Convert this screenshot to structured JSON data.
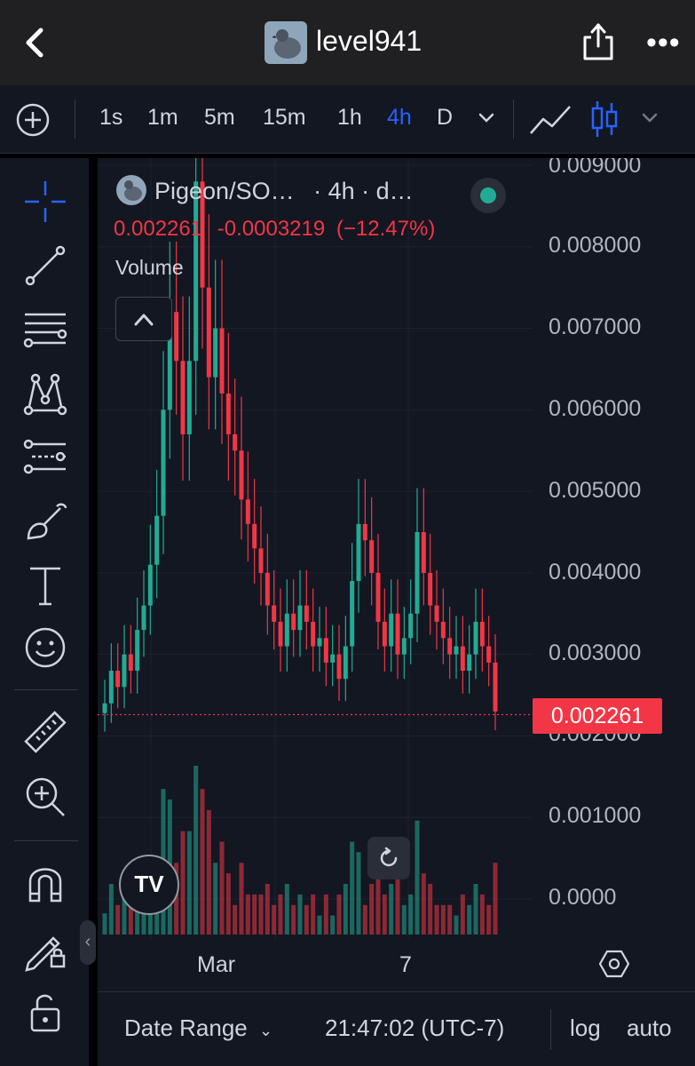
{
  "header": {
    "username": "level941"
  },
  "toolbar": {
    "intervals": [
      "1s",
      "1m",
      "5m",
      "15m",
      "1h",
      "4h",
      "D"
    ],
    "active_interval": "4h"
  },
  "legend": {
    "symbol": "Pigeon/SO…",
    "interval_info": "· 4h · d…",
    "price": "0.002261",
    "change": "-0.0003219",
    "change_pct": "(−12.47%)",
    "volume_label": "Volume"
  },
  "price_axis": {
    "labels": [
      "0.009000",
      "0.008000",
      "0.007000",
      "0.006000",
      "0.005000",
      "0.004000",
      "0.003000",
      "0.002000",
      "0.001000",
      "0.0000"
    ],
    "current_price": "0.002261"
  },
  "time_axis": {
    "labels": [
      "Mar",
      "7"
    ]
  },
  "bottom_bar": {
    "date_range": "Date Range",
    "time": "21:47:02 (UTC-7)",
    "log": "log",
    "auto": "auto"
  },
  "colors": {
    "up": "#22ab94",
    "down": "#f23645",
    "accent": "#2962ff",
    "background": "#131722"
  },
  "chart_data": {
    "type": "candlestick",
    "interval": "4h",
    "y_axis_range": [
      0,
      0.009
    ],
    "current_price": 0.002261,
    "x_tick_labels": [
      "Mar",
      "7"
    ],
    "ohlc_close_approx": [
      0.0024,
      0.0028,
      0.0026,
      0.003,
      0.0028,
      0.0033,
      0.0036,
      0.0041,
      0.0047,
      0.006,
      0.0072,
      0.0066,
      0.0057,
      0.0066,
      0.0088,
      0.0075,
      0.0064,
      0.007,
      0.0062,
      0.0057,
      0.0055,
      0.0049,
      0.0046,
      0.0043,
      0.004,
      0.0036,
      0.0034,
      0.0031,
      0.0035,
      0.0033,
      0.0036,
      0.0034,
      0.0031,
      0.0032,
      0.0029,
      0.003,
      0.0027,
      0.0031,
      0.0039,
      0.0046,
      0.0044,
      0.004,
      0.0034,
      0.0031,
      0.0035,
      0.003,
      0.0032,
      0.0035,
      0.0045,
      0.004,
      0.0036,
      0.0034,
      0.0032,
      0.003,
      0.0031,
      0.0028,
      0.003,
      0.0034,
      0.0031,
      0.0029,
      0.0023
    ]
  }
}
